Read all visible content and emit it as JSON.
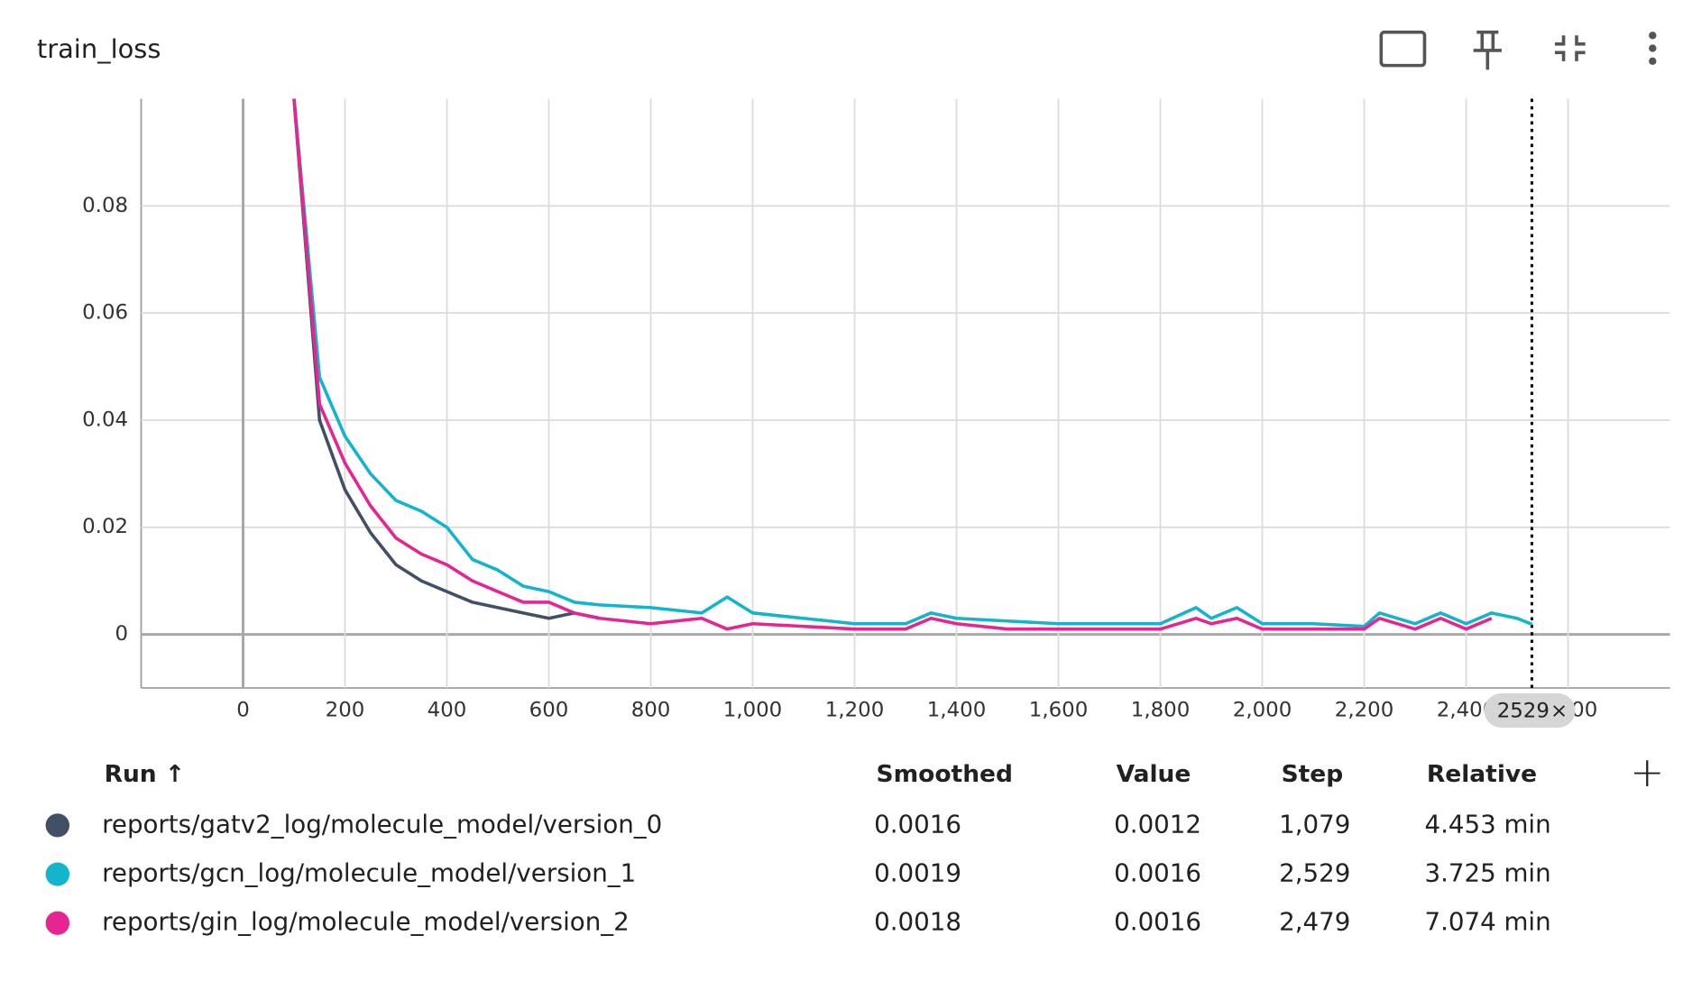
{
  "chart_data": {
    "type": "line",
    "title": "train_loss",
    "x": [
      100,
      150,
      200,
      250,
      300,
      350,
      400,
      450,
      500,
      550,
      600,
      650,
      700,
      800,
      900,
      950,
      1000,
      1100,
      1200,
      1300,
      1350,
      1400,
      1500,
      1600,
      1700,
      1800,
      1870,
      1900,
      1950,
      2000,
      2100,
      2200,
      2230,
      2300,
      2350,
      2400,
      2450,
      2500,
      2529
    ],
    "series": [
      {
        "name": "reports/gatv2_log/molecule_model/version_0",
        "color": "#425066",
        "values": [
          0.1,
          0.04,
          0.027,
          0.019,
          0.013,
          0.01,
          0.008,
          0.006,
          0.005,
          0.004,
          0.003,
          0.004,
          0.003,
          null,
          null,
          null,
          null,
          null,
          null,
          null,
          null,
          null,
          null,
          null,
          null,
          null,
          null,
          null,
          null,
          null,
          null,
          null,
          null,
          null,
          null,
          null,
          null,
          null,
          null
        ]
      },
      {
        "name": "reports/gcn_log/molecule_model/version_1",
        "color": "#12b5cb",
        "values": [
          0.1,
          0.048,
          0.037,
          0.03,
          0.025,
          0.023,
          0.02,
          0.014,
          0.012,
          0.009,
          0.008,
          0.006,
          0.0055,
          0.005,
          0.004,
          0.007,
          0.004,
          0.003,
          0.002,
          0.002,
          0.004,
          0.003,
          0.0025,
          0.002,
          0.002,
          0.002,
          0.005,
          0.003,
          0.005,
          0.002,
          0.002,
          0.0015,
          0.004,
          0.002,
          0.004,
          0.002,
          0.004,
          0.003,
          0.0019
        ]
      },
      {
        "name": "reports/gin_log/molecule_model/version_2",
        "color": "#e52592",
        "values": [
          0.1,
          0.043,
          0.032,
          0.024,
          0.018,
          0.015,
          0.013,
          0.01,
          0.008,
          0.006,
          0.006,
          0.004,
          0.003,
          0.002,
          0.003,
          0.001,
          0.002,
          0.0015,
          0.001,
          0.001,
          0.003,
          0.002,
          0.001,
          0.001,
          0.001,
          0.001,
          0.003,
          0.002,
          0.003,
          0.001,
          0.001,
          0.001,
          0.003,
          0.001,
          0.003,
          0.001,
          0.003,
          null,
          null
        ]
      }
    ],
    "ylim": [
      -0.01,
      0.1
    ],
    "yticks": [
      0,
      0.02,
      0.04,
      0.06,
      0.08
    ],
    "xlim": [
      -200,
      2800
    ],
    "xticks": [
      0,
      200,
      400,
      600,
      800,
      {
        "value": 1000,
        "label": "1,000"
      },
      {
        "value": 1200,
        "label": "1,200"
      },
      {
        "value": 1400,
        "label": "1,400"
      },
      {
        "value": 1600,
        "label": "1,600"
      },
      {
        "value": 1800,
        "label": "1,800"
      },
      {
        "value": 2000,
        "label": "2,000"
      },
      {
        "value": 2200,
        "label": "2,200"
      },
      {
        "value": 2400,
        "label": "2,400"
      },
      {
        "value": 2600,
        "label": "2,600"
      }
    ],
    "grid": true,
    "cursor_step": 2529
  },
  "table": {
    "columns": [
      "Run ↑",
      "Smoothed",
      "Value",
      "Step",
      "Relative"
    ],
    "rows": [
      [
        "reports/gatv2_log/molecule_model/version_0",
        "0.0016",
        "0.0012",
        "1,079",
        "4.453 min"
      ],
      [
        "reports/gcn_log/molecule_model/version_1",
        "0.0019",
        "0.0016",
        "2,529",
        "3.725 min"
      ],
      [
        "reports/gin_log/molecule_model/version_2",
        "0.0018",
        "0.0016",
        "2,479",
        "7.074 min"
      ]
    ]
  }
}
